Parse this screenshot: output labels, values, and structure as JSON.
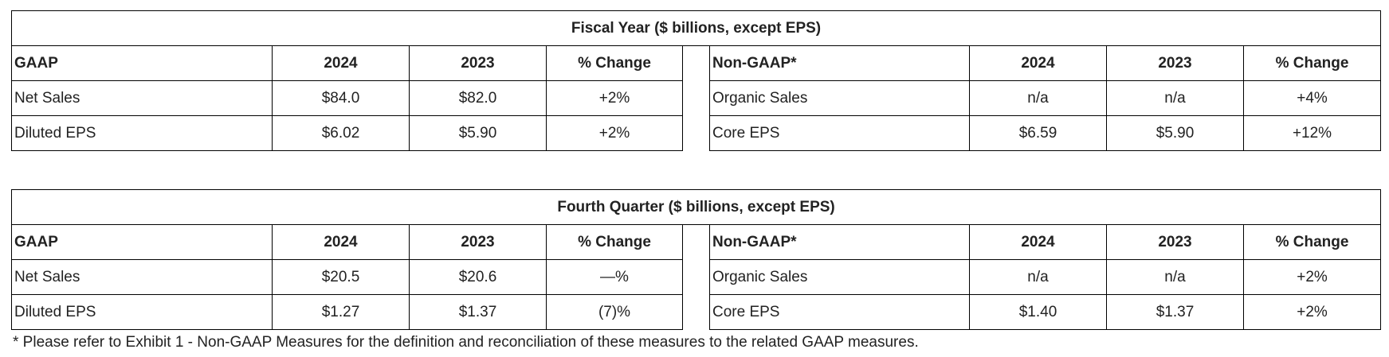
{
  "tables": [
    {
      "title": "Fiscal Year ($ billions, except EPS)",
      "gaap": {
        "headers": [
          "GAAP",
          "2024",
          "2023",
          "% Change"
        ],
        "rows": [
          [
            "Net Sales",
            "$84.0",
            "$82.0",
            "+2%"
          ],
          [
            "Diluted EPS",
            "$6.02",
            "$5.90",
            "+2%"
          ]
        ]
      },
      "nongaap": {
        "headers": [
          "Non-GAAP*",
          "2024",
          "2023",
          "% Change"
        ],
        "rows": [
          [
            "Organic Sales",
            "n/a",
            "n/a",
            "+4%"
          ],
          [
            "Core EPS",
            "$6.59",
            "$5.90",
            "+12%"
          ]
        ]
      }
    },
    {
      "title": "Fourth Quarter ($ billions, except EPS)",
      "gaap": {
        "headers": [
          "GAAP",
          "2024",
          "2023",
          "% Change"
        ],
        "rows": [
          [
            "Net Sales",
            "$20.5",
            "$20.6",
            "—%"
          ],
          [
            "Diluted EPS",
            "$1.27",
            "$1.37",
            "(7)%"
          ]
        ]
      },
      "nongaap": {
        "headers": [
          "Non-GAAP*",
          "2024",
          "2023",
          "% Change"
        ],
        "rows": [
          [
            "Organic Sales",
            "n/a",
            "n/a",
            "+2%"
          ],
          [
            "Core EPS",
            "$1.40",
            "$1.37",
            "+2%"
          ]
        ]
      }
    }
  ],
  "footnote": "* Please refer to Exhibit 1 - Non-GAAP Measures for the definition and reconciliation of these measures to the related GAAP measures."
}
